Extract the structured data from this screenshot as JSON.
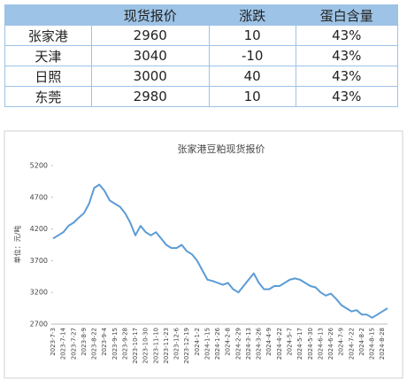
{
  "table": {
    "header": [
      "",
      "现货报价",
      "涨跌",
      "蛋白含量"
    ],
    "rows": [
      [
        "张家港",
        "2960",
        "10",
        "43%"
      ],
      [
        "天津",
        "3040",
        "-10",
        "43%"
      ],
      [
        "日照",
        "3000",
        "40",
        "43%"
      ],
      [
        "东莞",
        "2980",
        "10",
        "43%"
      ]
    ]
  },
  "chart_data": {
    "type": "line",
    "title": "张家港豆粕现货报价",
    "y_label": "单位：元/吨",
    "categories": [
      "2023-7-3",
      null,
      "2023-7-14",
      null,
      "2023-7-27",
      null,
      "2023-8-9",
      null,
      "2023-8-22",
      null,
      "2023-9-4",
      null,
      "2023-9-15",
      null,
      "2023-9-28",
      null,
      "2023-10-17",
      null,
      "2023-10-30",
      null,
      "2023-11-10",
      null,
      "2023-11-23",
      null,
      "2023-12-6",
      null,
      "2023-12-19",
      null,
      "2024-1-2",
      null,
      "2024-1-15",
      null,
      "2024-1-26",
      null,
      "2024-2-8",
      null,
      "2024-2-29",
      null,
      "2024-3-13",
      null,
      "2024-3-26",
      null,
      "2024-4-9",
      null,
      "2024-4-22",
      null,
      "2024-5-7",
      null,
      "2024-5-17",
      null,
      "2024-5-30",
      null,
      "2024-6-13",
      null,
      "2024-6-26",
      null,
      "2024-7-9",
      null,
      "2024-7-22",
      null,
      "2024-8-2",
      null,
      "2024-8-15",
      null,
      "2024-8-28",
      null
    ],
    "series": [
      {
        "name": "张家港",
        "color": "#5b9bd5",
        "values": [
          4050,
          4100,
          4150,
          4250,
          4300,
          4380,
          4450,
          4600,
          4850,
          4900,
          4800,
          4650,
          4600,
          4550,
          4450,
          4300,
          4100,
          4250,
          4150,
          4100,
          4150,
          4050,
          3950,
          3900,
          3900,
          3950,
          3850,
          3800,
          3700,
          3550,
          3400,
          3380,
          3350,
          3320,
          3350,
          3250,
          3200,
          3300,
          3400,
          3500,
          3350,
          3250,
          3250,
          3300,
          3300,
          3350,
          3400,
          3420,
          3400,
          3350,
          3300,
          3280,
          3200,
          3150,
          3180,
          3100,
          3000,
          2950,
          2900,
          2920,
          2850,
          2850,
          2800,
          2850,
          2900,
          2950
        ]
      }
    ],
    "ylim": [
      2700,
      5200
    ],
    "yticks": [
      2700,
      3200,
      3700,
      4200,
      4700,
      5200
    ]
  }
}
